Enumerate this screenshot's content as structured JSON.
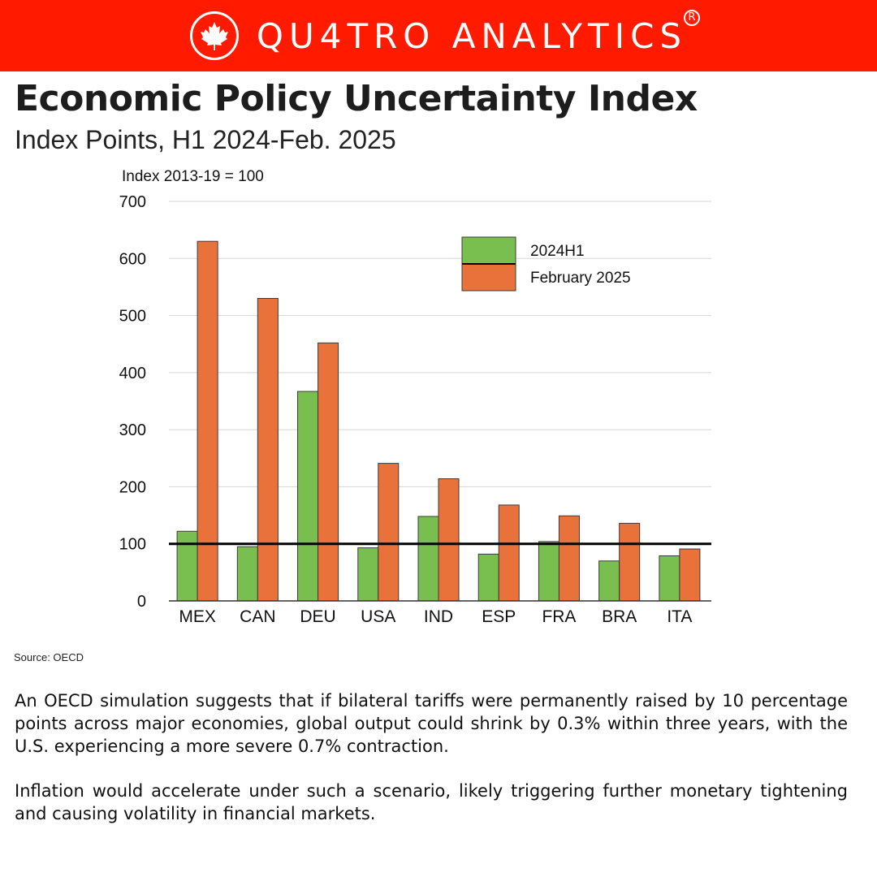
{
  "brand": {
    "name": "QU4TRO ANALYTICS",
    "registered_mark": "R",
    "logo_icon": "maple-leaf-icon",
    "banner_color": "#ff1a00"
  },
  "header": {
    "title": "Economic Policy Uncertainty Index",
    "subtitle": "Index Points, H1 2024-Feb. 2025"
  },
  "chart_data": {
    "type": "bar",
    "unit_label": "Index 2013-19 = 100",
    "categories": [
      "MEX",
      "CAN",
      "DEU",
      "USA",
      "IND",
      "ESP",
      "FRA",
      "BRA",
      "ITA"
    ],
    "series": [
      {
        "name": "2024H1",
        "color": "#79bf50",
        "values": [
          122,
          95,
          367,
          93,
          148,
          82,
          104,
          70,
          79
        ]
      },
      {
        "name": "February 2025",
        "color": "#e8723a",
        "values": [
          630,
          530,
          452,
          241,
          214,
          168,
          149,
          136,
          91
        ]
      }
    ],
    "ylim": [
      0,
      700
    ],
    "yticks": [
      0,
      100,
      200,
      300,
      400,
      500,
      600,
      700
    ],
    "reference_line": 100,
    "grid": true,
    "legend_position": "top-right"
  },
  "source": "Source: OECD",
  "body": {
    "paragraph_1": "An OECD simulation suggests that if bilateral tariffs were permanently raised by 10 percentage points across major economies, global output could shrink by 0.3% within three years, with the U.S. experiencing a more severe 0.7% contraction.",
    "paragraph_2": "Inflation would accelerate under such a scenario, likely triggering further monetary tightening and causing volatility in financial markets."
  }
}
